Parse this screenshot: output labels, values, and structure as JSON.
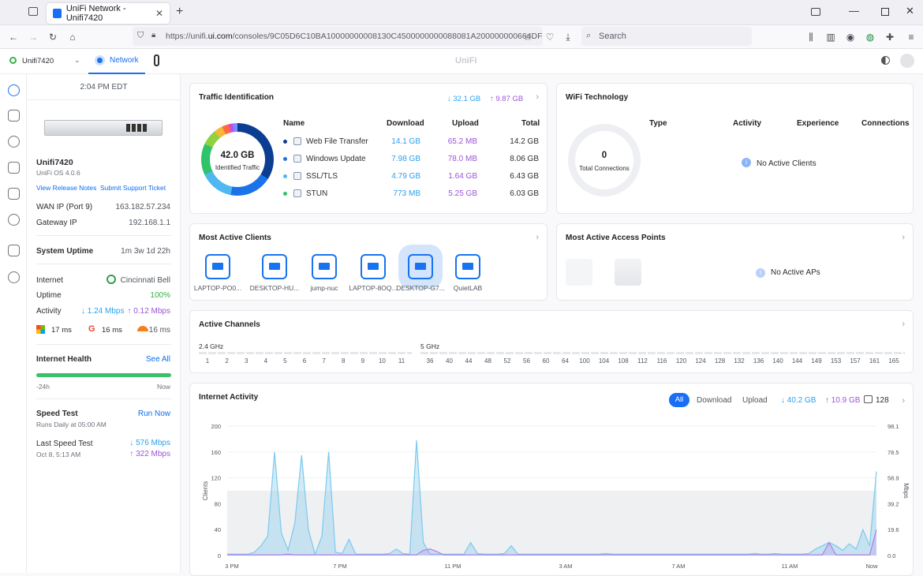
{
  "browser": {
    "tab_title": "UniFi Network - Unifi7420",
    "url_prefix": "https://unifi.",
    "url_domain": "ui.com",
    "url_rest": "/consoles/9C05D6C10BA10000000008130C4500000000088081A200000000664DF",
    "search_placeholder": "Search"
  },
  "appbar": {
    "console": "Unifi7420",
    "app": "Network",
    "brand": "UniFi"
  },
  "sidebar": {
    "time": "2:04 PM EDT",
    "device_name": "Unifi7420",
    "os": "UniFi OS 4.0.6",
    "release_notes": "View Release Notes",
    "support": "Submit Support Ticket",
    "wan_label": "WAN IP (Port 9)",
    "wan_value": "163.182.57.234",
    "gw_label": "Gateway IP",
    "gw_value": "192.168.1.1",
    "uptime_label": "System Uptime",
    "uptime_value": "1m 3w 1d 22h",
    "internet_label": "Internet",
    "isp": "Cincinnati Bell",
    "uptime2_label": "Uptime",
    "uptime2_value": "100%",
    "activity_label": "Activity",
    "activity_down": "↓ 1.24 Mbps",
    "activity_up": "↑ 0.12 Mbps",
    "lat_ms": "17 ms",
    "lat_google": "16 ms",
    "lat_cf": "16 ms",
    "health_label": "Internet Health",
    "see_all": "See All",
    "health_start": "-24h",
    "health_end": "Now",
    "health_fraction": 1.0,
    "speed_label": "Speed Test",
    "run_now": "Run Now",
    "speed_sched": "Runs Daily at 05:00 AM",
    "last_label": "Last Speed Test",
    "last_date": "Oct 8, 5:13 AM",
    "last_down": "↓ 576 Mbps",
    "last_up": "↑ 322 Mbps"
  },
  "traffic": {
    "title": "Traffic Identification",
    "total_down": "↓ 32.1 GB",
    "total_up": "↑ 9.87 GB",
    "center_value": "42.0 GB",
    "center_label": "Identified Traffic",
    "headers": [
      "Name",
      "Download",
      "Upload",
      "Total"
    ],
    "rows": [
      {
        "name": "Web File Transfer",
        "download": "14.1 GB",
        "upload": "65.2 MB",
        "total": "14.2 GB",
        "color": "#0b3d91"
      },
      {
        "name": "Windows Update",
        "download": "7.98 GB",
        "upload": "78.0 MB",
        "total": "8.06 GB",
        "color": "#1a73e8"
      },
      {
        "name": "SSL/TLS",
        "download": "4.79 GB",
        "upload": "1.64 GB",
        "total": "6.43 GB",
        "color": "#4fb8f0"
      },
      {
        "name": "STUN",
        "download": "773 MB",
        "upload": "5.25 GB",
        "total": "6.03 GB",
        "color": "#2fc36b"
      }
    ]
  },
  "wifi": {
    "title": "WiFi Technology",
    "center_value": "0",
    "center_label": "Total Connections",
    "headers": [
      "Type",
      "Activity",
      "Experience",
      "Connections"
    ],
    "empty": "No Active Clients"
  },
  "clients": {
    "title": "Most Active Clients",
    "items": [
      "LAPTOP-PO0...",
      "DESKTOP-HU...",
      "jump-nuc",
      "LAPTOP-8OQ...",
      "DESKTOP-G7...",
      "QuietLAB"
    ]
  },
  "aps": {
    "title": "Most Active Access Points",
    "empty": "No Active APs"
  },
  "channels": {
    "title": "Active Channels",
    "band24": "2.4 GHz",
    "band5": "5 GHz",
    "ch24": [
      "1",
      "2",
      "3",
      "4",
      "5",
      "6",
      "7",
      "8",
      "9",
      "10",
      "11"
    ],
    "ch5": [
      "36",
      "40",
      "44",
      "48",
      "52",
      "56",
      "60",
      "64",
      "100",
      "104",
      "108",
      "112",
      "116",
      "120",
      "124",
      "128",
      "132",
      "136",
      "140",
      "144",
      "149",
      "153",
      "157",
      "161",
      "165"
    ]
  },
  "activity": {
    "title": "Internet Activity",
    "filters": [
      "All",
      "Download",
      "Upload"
    ],
    "down": "↓ 40.2 GB",
    "up": "↑ 10.9 GB",
    "clients": "128"
  },
  "chart_data": {
    "type": "line",
    "ylabel": "Clients",
    "y2label": "Mbps",
    "yticks": [
      "200",
      "160",
      "120",
      "80",
      "40",
      "0"
    ],
    "y2ticks": [
      "98.1",
      "78.5",
      "58.9",
      "39.2",
      "19.6",
      "0.0"
    ],
    "xticks": [
      "3 PM",
      "7 PM",
      "11 PM",
      "3 AM",
      "7 AM",
      "11 AM",
      "Now"
    ],
    "ylim": [
      0,
      200
    ],
    "y2lim": [
      0,
      98.1
    ],
    "series": [
      {
        "values": [
          2,
          2,
          2,
          2,
          5,
          15,
          30,
          160,
          35,
          8,
          50,
          155,
          40,
          2,
          30,
          160,
          5,
          3,
          25,
          2,
          2,
          2,
          2,
          2,
          3,
          10,
          3,
          2,
          178,
          20,
          2,
          2,
          2,
          2,
          2,
          2,
          20,
          3,
          2,
          2,
          2,
          3,
          15,
          2,
          2,
          2,
          2,
          2,
          2,
          2,
          2,
          2,
          2,
          2,
          2,
          2,
          3,
          2,
          2,
          2,
          2,
          2,
          2,
          2,
          2,
          2,
          2,
          2,
          2,
          2,
          2,
          2,
          2,
          2,
          2,
          2,
          2,
          2,
          3,
          2,
          2,
          3,
          2,
          2,
          2,
          2,
          3,
          10,
          15,
          20,
          15,
          8,
          18,
          10,
          40,
          15,
          130
        ]
      },
      {
        "values": [
          1,
          1,
          1,
          1,
          1,
          1,
          1,
          1,
          1,
          2,
          1,
          1,
          1,
          1,
          1,
          1,
          1,
          1,
          1,
          1,
          1,
          1,
          1,
          1,
          1,
          1,
          1,
          1,
          1,
          8,
          10,
          6,
          1,
          1,
          1,
          1,
          1,
          1,
          1,
          1,
          1,
          1,
          1,
          1,
          1,
          1,
          1,
          1,
          1,
          1,
          1,
          1,
          1,
          1,
          1,
          1,
          1,
          1,
          1,
          1,
          1,
          1,
          1,
          1,
          1,
          1,
          1,
          1,
          1,
          1,
          1,
          1,
          1,
          1,
          1,
          1,
          1,
          1,
          1,
          1,
          1,
          1,
          1,
          1,
          1,
          1,
          1,
          1,
          1,
          20,
          1,
          1,
          1,
          1,
          1,
          1,
          40
        ]
      }
    ]
  }
}
